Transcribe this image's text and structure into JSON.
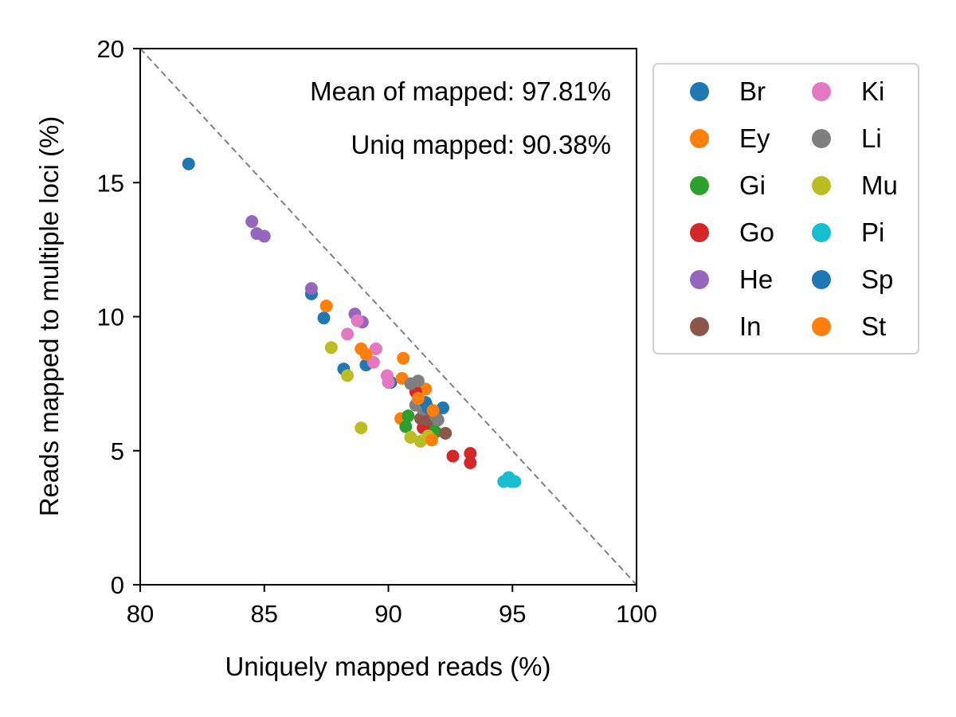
{
  "chart_data": {
    "type": "scatter",
    "title": "",
    "xlabel": "Uniquely mapped reads (%)",
    "ylabel": "Reads mapped to multiple loci (%)",
    "xlim": [
      80,
      100
    ],
    "ylim": [
      0,
      20
    ],
    "xticks": [
      "80",
      "85",
      "90",
      "95",
      "100"
    ],
    "yticks": [
      "0",
      "5",
      "10",
      "15",
      "20"
    ],
    "grid": false,
    "reference_line": {
      "from": [
        80,
        20
      ],
      "to": [
        100,
        0
      ],
      "style": "dashed",
      "color": "#808080"
    },
    "annotations": [
      "Mean of mapped: 97.81%",
      "Uniq mapped: 90.38%"
    ],
    "legend": {
      "placement": "outside-right",
      "columns": 2
    },
    "series": [
      {
        "name": "Br",
        "color": "#1f77b4",
        "points": [
          [
            81.95,
            15.7
          ],
          [
            86.9,
            10.85
          ],
          [
            87.4,
            9.95
          ],
          [
            88.2,
            8.05
          ],
          [
            89.1,
            8.2
          ],
          [
            90.1,
            7.55
          ]
        ]
      },
      {
        "name": "Ey",
        "color": "#ff7f0e",
        "points": [
          [
            87.5,
            10.4
          ],
          [
            88.9,
            8.8
          ],
          [
            90.6,
            8.45
          ],
          [
            90.55,
            7.7
          ],
          [
            91.5,
            7.3
          ],
          [
            90.5,
            6.2
          ]
        ]
      },
      {
        "name": "Gi",
        "color": "#2ca02c",
        "points": [
          [
            90.7,
            5.9
          ],
          [
            90.8,
            6.3
          ],
          [
            91.9,
            5.7
          ],
          [
            91.8,
            5.95
          ]
        ]
      },
      {
        "name": "Go",
        "color": "#d62728",
        "points": [
          [
            91.1,
            7.2
          ],
          [
            91.4,
            5.85
          ],
          [
            92.6,
            4.8
          ],
          [
            93.3,
            4.9
          ],
          [
            93.3,
            4.55
          ]
        ]
      },
      {
        "name": "He",
        "color": "#9467bd",
        "points": [
          [
            84.5,
            13.55
          ],
          [
            84.7,
            13.1
          ],
          [
            85.0,
            13.0
          ],
          [
            86.9,
            11.05
          ],
          [
            88.65,
            10.1
          ],
          [
            88.95,
            9.8
          ]
        ]
      },
      {
        "name": "In",
        "color": "#8c564b",
        "points": [
          [
            91.3,
            6.2
          ],
          [
            91.6,
            6.15
          ],
          [
            92.3,
            5.65
          ]
        ]
      },
      {
        "name": "Ki",
        "color": "#e377c2",
        "points": [
          [
            88.35,
            9.35
          ],
          [
            88.75,
            9.85
          ],
          [
            89.5,
            8.8
          ],
          [
            89.4,
            8.3
          ],
          [
            89.95,
            7.8
          ],
          [
            90.0,
            7.55
          ]
        ]
      },
      {
        "name": "Li",
        "color": "#7f7f7f",
        "points": [
          [
            90.9,
            7.5
          ],
          [
            91.2,
            7.6
          ],
          [
            91.1,
            6.7
          ],
          [
            91.4,
            6.55
          ],
          [
            91.9,
            6.3
          ],
          [
            92.0,
            6.15
          ]
        ]
      },
      {
        "name": "Mu",
        "color": "#bcbd22",
        "points": [
          [
            87.7,
            8.85
          ],
          [
            88.35,
            7.8
          ],
          [
            88.9,
            5.85
          ],
          [
            90.9,
            5.5
          ],
          [
            91.3,
            5.35
          ],
          [
            91.6,
            5.55
          ]
        ]
      },
      {
        "name": "Pi",
        "color": "#17becf",
        "points": [
          [
            94.65,
            3.85
          ],
          [
            94.85,
            4.0
          ],
          [
            94.95,
            3.85
          ],
          [
            95.1,
            3.85
          ]
        ]
      },
      {
        "name": "Sp",
        "color": "#1f77b4",
        "points": [
          [
            91.5,
            6.8
          ],
          [
            91.6,
            6.6
          ],
          [
            92.2,
            6.6
          ]
        ]
      },
      {
        "name": "St",
        "color": "#ff7f0e",
        "points": [
          [
            89.1,
            8.6
          ],
          [
            91.2,
            6.95
          ],
          [
            91.8,
            6.5
          ],
          [
            91.75,
            5.4
          ]
        ]
      }
    ]
  }
}
